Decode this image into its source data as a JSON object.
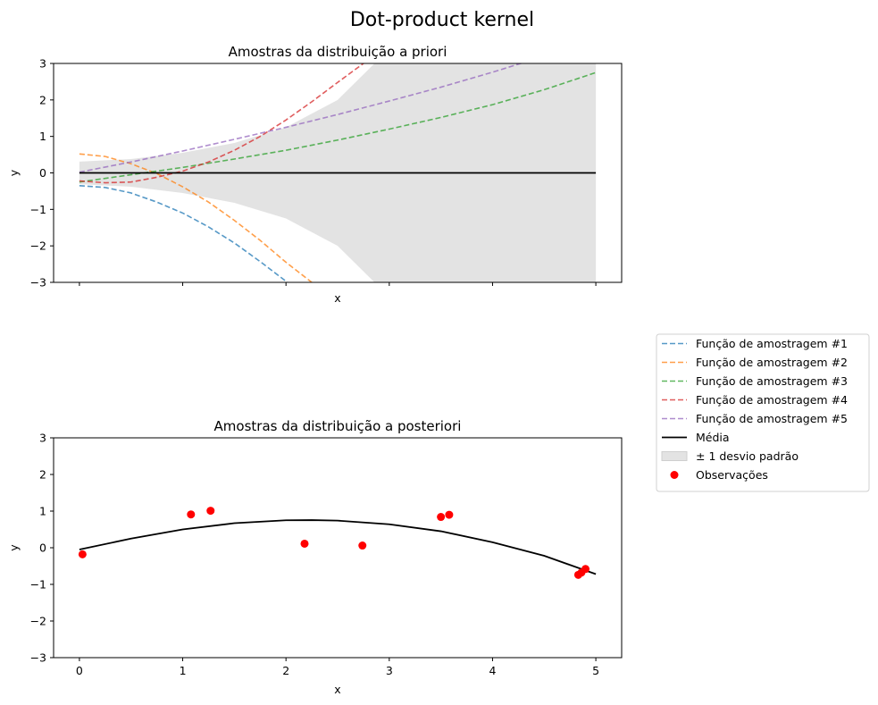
{
  "figure": {
    "title": "Dot-product kernel"
  },
  "legend": {
    "placement": "right of figure, between subplots",
    "entries": [
      {
        "label": "Função de amostragem #1",
        "kind": "dashed-line",
        "color": "#1f77b4"
      },
      {
        "label": "Função de amostragem #2",
        "kind": "dashed-line",
        "color": "#ff7f0e"
      },
      {
        "label": "Função de amostragem #3",
        "kind": "dashed-line",
        "color": "#2ca02c"
      },
      {
        "label": "Função de amostragem #4",
        "kind": "dashed-line",
        "color": "#d62728"
      },
      {
        "label": "Função de amostragem #5",
        "kind": "dashed-line",
        "color": "#9467bd"
      },
      {
        "label": "Média",
        "kind": "solid-line",
        "color": "#000000"
      },
      {
        "label": "± 1 desvio padrão",
        "kind": "patch",
        "color": "#e0e0e0"
      },
      {
        "label": "Observações",
        "kind": "marker",
        "color": "#ff0000"
      }
    ]
  },
  "chart_data": [
    {
      "type": "line",
      "title": "Amostras da distribuição a priori",
      "xlabel": "x",
      "ylabel": "y",
      "xlim": [
        -0.25,
        5.25
      ],
      "ylim": [
        -3,
        3
      ],
      "xticks": [
        0,
        1,
        2,
        3,
        4,
        5
      ],
      "xtick_labels_visible": false,
      "yticks": [
        -3,
        -2,
        -1,
        0,
        1,
        2,
        3
      ],
      "grid": false,
      "band": {
        "name": "± 1 desvio padrão",
        "x": [
          0,
          0.5,
          1,
          1.5,
          2,
          2.5,
          3,
          3.5,
          4,
          4.5,
          5
        ],
        "lower": [
          -0.31,
          -0.38,
          -0.55,
          -0.82,
          -1.25,
          -2.0,
          -3.4,
          -5.0,
          -7.0,
          -9.0,
          -11.0
        ],
        "upper": [
          0.31,
          0.38,
          0.55,
          0.82,
          1.25,
          2.0,
          3.4,
          5.0,
          7.0,
          9.0,
          11.0
        ]
      },
      "series": [
        {
          "name": "Função de amostragem #1",
          "style": "dashed",
          "color": "#1f77b4",
          "x": [
            0,
            0.25,
            0.5,
            0.75,
            1,
            1.25,
            1.5,
            1.75,
            2,
            2.1
          ],
          "y": [
            -0.35,
            -0.4,
            -0.55,
            -0.8,
            -1.1,
            -1.48,
            -1.92,
            -2.43,
            -2.97,
            -3.2
          ]
        },
        {
          "name": "Função de amostragem #2",
          "style": "dashed",
          "color": "#ff7f0e",
          "x": [
            0,
            0.25,
            0.5,
            0.75,
            1,
            1.25,
            1.5,
            1.75,
            2,
            2.25,
            2.35
          ],
          "y": [
            0.52,
            0.45,
            0.25,
            -0.02,
            -0.38,
            -0.8,
            -1.3,
            -1.85,
            -2.45,
            -3.0,
            -3.2
          ]
        },
        {
          "name": "Função de amostragem #3",
          "style": "dashed",
          "color": "#2ca02c",
          "x": [
            0,
            0.5,
            1,
            1.5,
            2,
            2.5,
            3,
            3.5,
            4,
            4.5,
            5
          ],
          "y": [
            -0.25,
            -0.05,
            0.15,
            0.38,
            0.62,
            0.9,
            1.2,
            1.52,
            1.87,
            2.28,
            2.75
          ]
        },
        {
          "name": "Função de amostragem #4",
          "style": "dashed",
          "color": "#d62728",
          "x": [
            0,
            0.25,
            0.5,
            0.75,
            1,
            1.25,
            1.5,
            1.75,
            2,
            2.25,
            2.5,
            2.75,
            3,
            3.1
          ],
          "y": [
            -0.22,
            -0.27,
            -0.25,
            -0.12,
            0.05,
            0.3,
            0.62,
            1.0,
            1.45,
            1.95,
            2.48,
            3.0,
            3.4,
            3.55
          ]
        },
        {
          "name": "Função de amostragem #5",
          "style": "dashed",
          "color": "#9467bd",
          "x": [
            0,
            0.5,
            1,
            1.5,
            2,
            2.5,
            3,
            3.5,
            4,
            4.5
          ],
          "y": [
            0.02,
            0.3,
            0.6,
            0.92,
            1.25,
            1.6,
            1.97,
            2.35,
            2.76,
            3.2
          ]
        },
        {
          "name": "Média",
          "style": "solid",
          "color": "#000000",
          "x": [
            0,
            5
          ],
          "y": [
            0,
            0
          ]
        }
      ]
    },
    {
      "type": "line",
      "title": "Amostras da distribuição a posteriori",
      "xlabel": "x",
      "ylabel": "y",
      "xlim": [
        -0.25,
        5.25
      ],
      "ylim": [
        -3,
        3
      ],
      "xticks": [
        0,
        1,
        2,
        3,
        4,
        5
      ],
      "yticks": [
        -3,
        -2,
        -1,
        0,
        1,
        2,
        3
      ],
      "grid": false,
      "series": [
        {
          "name": "Média",
          "style": "solid",
          "color": "#000000",
          "x": [
            0,
            0.5,
            1,
            1.5,
            2,
            2.25,
            2.5,
            3,
            3.5,
            4,
            4.5,
            5
          ],
          "y": [
            -0.05,
            0.25,
            0.5,
            0.67,
            0.75,
            0.755,
            0.74,
            0.64,
            0.45,
            0.15,
            -0.22,
            -0.72
          ]
        }
      ],
      "scatter": {
        "name": "Observações",
        "color": "#ff0000",
        "points": [
          [
            0.03,
            -0.18
          ],
          [
            1.08,
            0.91
          ],
          [
            1.27,
            1.01
          ],
          [
            2.18,
            0.11
          ],
          [
            2.74,
            0.06
          ],
          [
            3.5,
            0.84
          ],
          [
            3.58,
            0.9
          ],
          [
            4.83,
            -0.74
          ],
          [
            4.86,
            -0.68
          ],
          [
            4.9,
            -0.58
          ]
        ]
      }
    }
  ]
}
